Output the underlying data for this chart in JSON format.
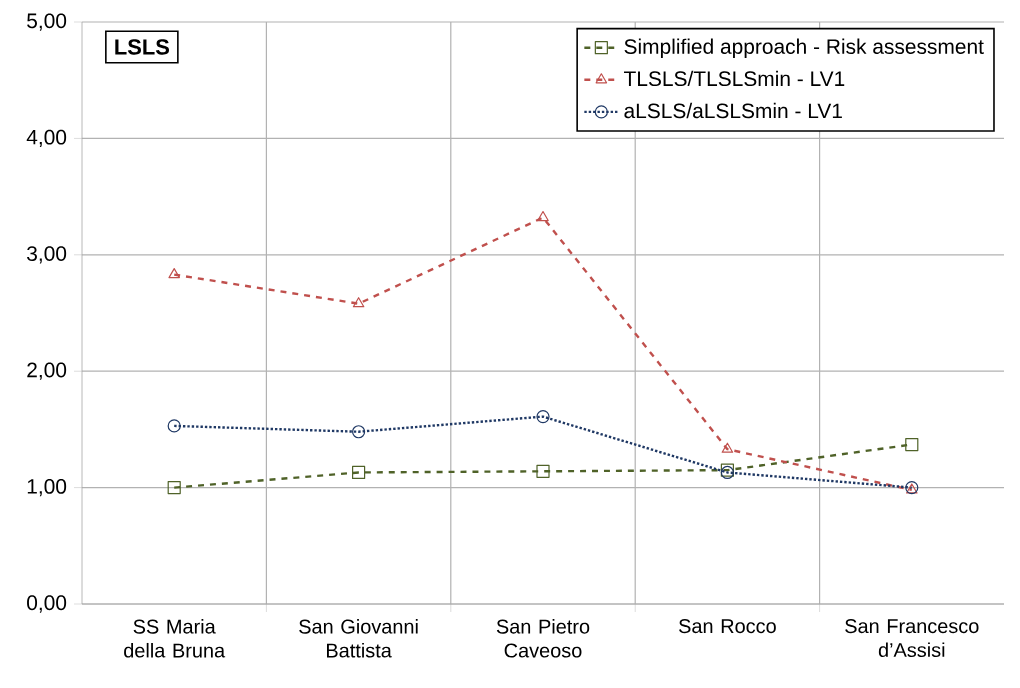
{
  "chart_data": {
    "type": "line",
    "title": "LSLS",
    "categories": [
      "SS Maria della Bruna",
      "San Giovanni Battista",
      "San Pietro Caveoso",
      "San Rocco",
      "San Francesco d’Assisi"
    ],
    "series": [
      {
        "name": "Simplified approach - Risk assessment",
        "color": "#4f6228",
        "marker": "square",
        "line_style": "dashed",
        "values": [
          1.0,
          1.13,
          1.14,
          1.15,
          1.37
        ]
      },
      {
        "name": "TLSLS/TLSLSmin - LV1",
        "color": "#c0504d",
        "marker": "triangle",
        "line_style": "dashed",
        "values": [
          2.83,
          2.58,
          3.32,
          1.33,
          0.98
        ]
      },
      {
        "name": "aLSLS/aLSLSmin - LV1",
        "color": "#1f3864",
        "marker": "circle",
        "line_style": "dotted",
        "values": [
          1.53,
          1.48,
          1.61,
          1.13,
          1.0
        ]
      }
    ],
    "ylim": [
      0,
      5
    ],
    "yticks": [
      {
        "value": 0,
        "label": "0,00"
      },
      {
        "value": 1,
        "label": "1,00"
      },
      {
        "value": 2,
        "label": "2,00"
      },
      {
        "value": 3,
        "label": "3,00"
      },
      {
        "value": 4,
        "label": "4,00"
      },
      {
        "value": 5,
        "label": "5,00"
      }
    ],
    "grid": true,
    "legend": "top right"
  }
}
